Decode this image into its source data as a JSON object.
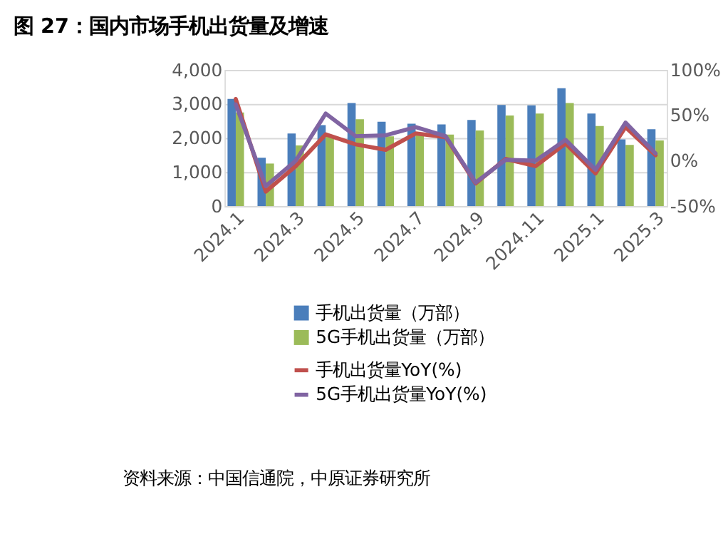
{
  "chart_data": {
    "type": "bar",
    "title": "图 27：国内市场手机出货量及增速",
    "categories": [
      "2024.1",
      null,
      "2024.3",
      null,
      "2024.5",
      null,
      "2024.7",
      null,
      "2024.9",
      null,
      "2024.11",
      null,
      "2025.1",
      null,
      "2025.3"
    ],
    "series": [
      {
        "name": "手机出货量（万部）",
        "color": "#4a7ebb",
        "values": [
          3150,
          1420,
          2130,
          2380,
          3030,
          2480,
          2420,
          2400,
          2530,
          2970,
          2960,
          3460,
          2720,
          1960,
          2260
        ]
      },
      {
        "name": "5G手机出货量（万部）",
        "color": "#9bbb59",
        "values": [
          2750,
          1250,
          1780,
          2050,
          2550,
          2050,
          2150,
          2100,
          2220,
          2660,
          2720,
          3030,
          2350,
          1800,
          1930
        ]
      },
      {
        "name": "手机出货量YoY(%)",
        "type": "line",
        "axis": "y2",
        "color": "#c0504d",
        "values": [
          68,
          -34,
          -6,
          29,
          18,
          12,
          30,
          26,
          -25,
          2,
          -6,
          19,
          -14,
          37,
          6
        ]
      },
      {
        "name": "5G手机出货量YoY(%)",
        "type": "line",
        "axis": "y2",
        "color": "#8064a2",
        "values": [
          62,
          -28,
          0,
          52,
          27,
          28,
          37,
          27,
          -24,
          1,
          0,
          23,
          -10,
          42,
          8
        ]
      }
    ],
    "ylim": [
      0,
      4000
    ],
    "yticks": [
      {
        "value": 0,
        "label": "0"
      },
      {
        "value": 1000,
        "label": "1,000"
      },
      {
        "value": 2000,
        "label": "2,000"
      },
      {
        "value": 3000,
        "label": "3,000"
      },
      {
        "value": 4000,
        "label": "4,000"
      }
    ],
    "y2lim": [
      -50,
      100
    ],
    "y2ticks": [
      {
        "value": -50,
        "label": "-50%"
      },
      {
        "value": 0,
        "label": "0%"
      },
      {
        "value": 50,
        "label": "50%"
      },
      {
        "value": 100,
        "label": "100%"
      }
    ],
    "grid": "y",
    "legend": "bottom",
    "annotations": [
      "资料来源：中国信通院，中原证券研究所"
    ]
  }
}
